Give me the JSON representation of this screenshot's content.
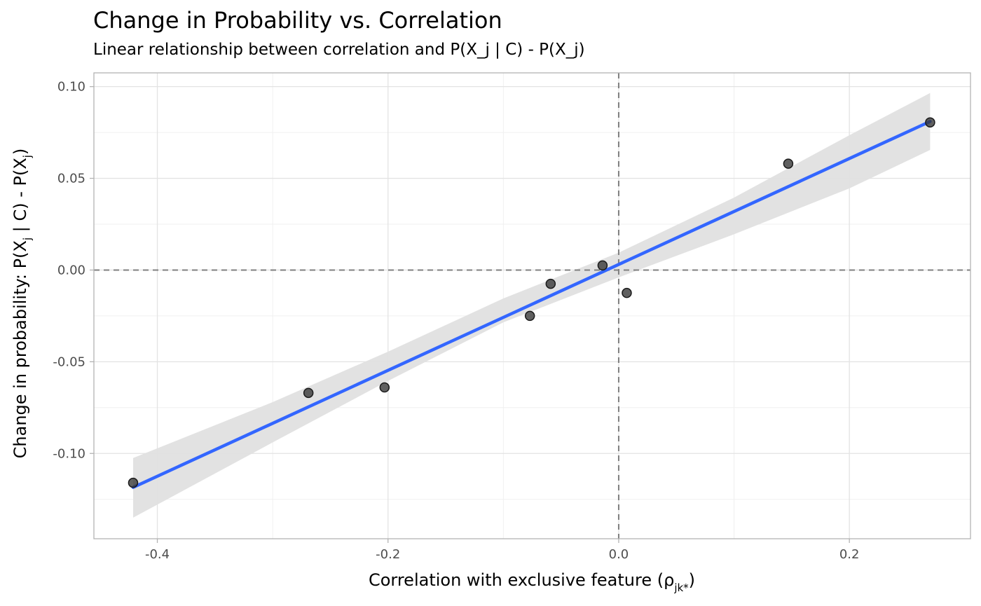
{
  "chart_data": {
    "type": "scatter",
    "title": "Change in Probability vs. Correlation",
    "subtitle": "Linear relationship between correlation and P(X_j | C) - P(X_j)",
    "xlabel": {
      "main": "Correlation with exclusive feature (",
      "symbol": "ρ",
      "sub": "jk*",
      "close": ")"
    },
    "ylabel": {
      "part1": "Change in probability: P(X",
      "sub1": "j",
      "part2": " | C) - P(X",
      "sub2": "j",
      "part3": ")"
    },
    "xlim": [
      -0.455,
      0.305
    ],
    "ylim": [
      -0.1465,
      0.1075
    ],
    "x_ticks": [
      -0.4,
      -0.2,
      0.0,
      0.2
    ],
    "x_tick_labels": [
      "-0.4",
      "-0.2",
      "0.0",
      "0.2"
    ],
    "y_ticks": [
      -0.1,
      -0.05,
      0.0,
      0.05,
      0.1
    ],
    "y_tick_labels": [
      "-0.10",
      "-0.05",
      "0.00",
      "0.05",
      "0.10"
    ],
    "grid": true,
    "points": [
      {
        "x": -0.421,
        "y": -0.116
      },
      {
        "x": -0.269,
        "y": -0.067
      },
      {
        "x": -0.203,
        "y": -0.064
      },
      {
        "x": -0.077,
        "y": -0.025
      },
      {
        "x": -0.059,
        "y": -0.0075
      },
      {
        "x": -0.014,
        "y": 0.0025
      },
      {
        "x": 0.007,
        "y": -0.0125
      },
      {
        "x": 0.147,
        "y": 0.058
      },
      {
        "x": 0.27,
        "y": 0.0805
      }
    ],
    "fit_line": {
      "x0": -0.421,
      "y0": -0.1185,
      "x1": 0.27,
      "y1": 0.081
    },
    "confidence_band": [
      {
        "x": -0.421,
        "lower": -0.135,
        "upper": -0.1025
      },
      {
        "x": -0.3,
        "lower": -0.094,
        "upper": -0.072
      },
      {
        "x": -0.2,
        "lower": -0.0605,
        "upper": -0.0445
      },
      {
        "x": -0.1,
        "lower": -0.0285,
        "upper": -0.0155
      },
      {
        "x": 0.0,
        "lower": -0.004,
        "upper": 0.0095
      },
      {
        "x": 0.1,
        "lower": 0.0195,
        "upper": 0.0395
      },
      {
        "x": 0.2,
        "lower": 0.0445,
        "upper": 0.0735
      },
      {
        "x": 0.27,
        "lower": 0.0655,
        "upper": 0.0965
      }
    ],
    "reference_lines": {
      "x": 0.0,
      "y": 0.0
    },
    "colors": {
      "point": "#333333",
      "fit_line": "#3366ff",
      "band": "#e0e0e0",
      "grid_major": "#e3e3e3",
      "grid_minor": "#f0f0f0",
      "border": "#b3b3b3",
      "reference": "#7f7f7f"
    }
  }
}
